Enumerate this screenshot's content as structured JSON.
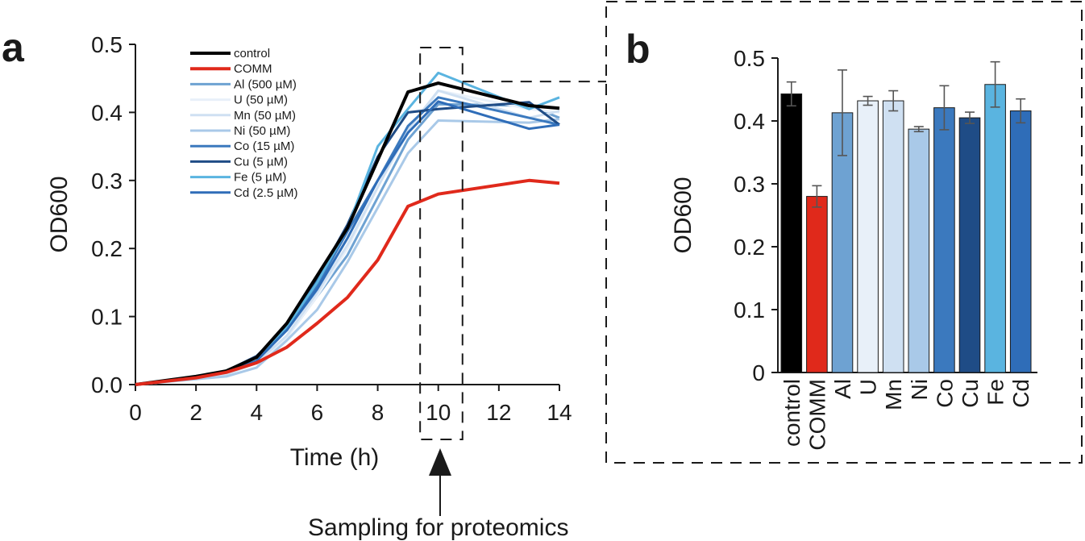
{
  "figure": {
    "panel_a_label": "a",
    "panel_b_label": "b",
    "annotation": "Sampling for proteomics"
  },
  "colors": {
    "control": "#000000",
    "COMM": "#e0291b",
    "Al": "#6ea2d2",
    "U": "#e8f0f9",
    "Mn": "#cfe0f2",
    "Ni": "#a9c9e8",
    "Co": "#3b79be",
    "Cu": "#1f4c86",
    "Fe": "#5ab4e0",
    "Cd": "#2f6db8"
  },
  "chart_data": [
    {
      "type": "line",
      "panel": "a",
      "title": "",
      "xlabel": "Time (h)",
      "ylabel": "OD600",
      "xlim": [
        0,
        14
      ],
      "ylim": [
        0,
        0.5
      ],
      "xticks": [
        "0",
        "2",
        "4",
        "6",
        "8",
        "10",
        "12",
        "14"
      ],
      "yticks": [
        "0.0",
        "0.1",
        "0.2",
        "0.3",
        "0.4",
        "0.5"
      ],
      "x": [
        0,
        2,
        3,
        4,
        5,
        6,
        7,
        8,
        9,
        10,
        13,
        14
      ],
      "series": [
        {
          "key": "control",
          "name": "control",
          "values": [
            0,
            0.012,
            0.02,
            0.04,
            0.09,
            0.16,
            0.23,
            0.33,
            0.43,
            0.443,
            0.41,
            0.406
          ]
        },
        {
          "key": "COMM",
          "name": "COMM",
          "values": [
            0,
            0.01,
            0.018,
            0.032,
            0.055,
            0.09,
            0.128,
            0.183,
            0.262,
            0.28,
            0.3,
            0.296
          ]
        },
        {
          "key": "Al",
          "name": "Al (500 µM)",
          "values": [
            0,
            0.01,
            0.016,
            0.035,
            0.07,
            0.13,
            0.19,
            0.275,
            0.36,
            0.412,
            0.41,
            0.392
          ]
        },
        {
          "key": "U",
          "name": "U (50 µM)",
          "values": [
            0,
            0.008,
            0.012,
            0.025,
            0.07,
            0.13,
            0.2,
            0.29,
            0.37,
            0.432,
            0.405,
            0.4
          ]
        },
        {
          "key": "Mn",
          "name": "Mn (50 µM)",
          "values": [
            0,
            0.01,
            0.015,
            0.032,
            0.072,
            0.135,
            0.205,
            0.29,
            0.375,
            0.432,
            0.392,
            0.402
          ]
        },
        {
          "key": "Ni",
          "name": "Ni (50 µM)",
          "values": [
            0,
            0.008,
            0.012,
            0.025,
            0.065,
            0.11,
            0.18,
            0.26,
            0.34,
            0.388,
            0.385,
            0.39
          ]
        },
        {
          "key": "Co",
          "name": "Co (15 µM)",
          "values": [
            0,
            0.012,
            0.018,
            0.04,
            0.08,
            0.145,
            0.225,
            0.3,
            0.38,
            0.422,
            0.392,
            0.382
          ]
        },
        {
          "key": "Cu",
          "name": "Cu (5 µM)",
          "values": [
            0,
            0.012,
            0.02,
            0.042,
            0.085,
            0.155,
            0.235,
            0.335,
            0.4,
            0.405,
            0.415,
            0.382
          ]
        },
        {
          "key": "Fe",
          "name": "Fe (5 µM)",
          "values": [
            0,
            0.012,
            0.02,
            0.04,
            0.085,
            0.15,
            0.23,
            0.35,
            0.405,
            0.458,
            0.405,
            0.422
          ]
        },
        {
          "key": "Cd",
          "name": "Cd (2.5 µM)",
          "values": [
            0,
            0.012,
            0.018,
            0.035,
            0.08,
            0.14,
            0.215,
            0.3,
            0.37,
            0.416,
            0.376,
            0.382
          ]
        }
      ],
      "sampling_window": [
        9.4,
        10.8
      ],
      "legend": "top-left"
    },
    {
      "type": "bar",
      "panel": "b",
      "title": "",
      "xlabel": "",
      "ylabel": "OD600",
      "ylim": [
        0,
        0.5
      ],
      "yticks": [
        "0",
        "0.1",
        "0.2",
        "0.3",
        "0.4",
        "0.5"
      ],
      "categories": [
        "control",
        "COMM",
        "Al",
        "U",
        "Mn",
        "Ni",
        "Co",
        "Cu",
        "Fe",
        "Cd"
      ],
      "values": [
        0.443,
        0.28,
        0.413,
        0.432,
        0.432,
        0.387,
        0.421,
        0.405,
        0.458,
        0.416
      ],
      "errors": [
        0.019,
        0.017,
        0.068,
        0.007,
        0.016,
        0.004,
        0.035,
        0.009,
        0.036,
        0.019
      ]
    }
  ]
}
